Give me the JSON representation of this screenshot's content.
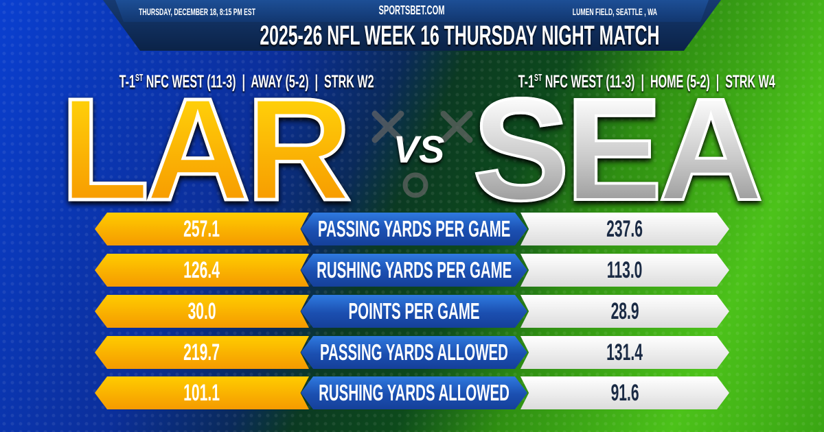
{
  "header": {
    "date": "THURSDAY, DECEMBER 18, 8:15 PM EST",
    "site": "SPORTSBET.COM",
    "venue": "LUMEN FIELD, SEATTLE , WA",
    "title": "2025-26 NFL WEEK 16 THURSDAY NIGHT MATCH"
  },
  "away": {
    "abbr": "LAR",
    "rank_prefix": "T-1",
    "rank_sup": "ST",
    "record": " NFC WEST (11-3)  |  AWAY (5-2)  |  STRK W2",
    "color": "#f6a800"
  },
  "home": {
    "abbr": "SEA",
    "rank_prefix": "T-1",
    "rank_sup": "ST",
    "record": " NFC WEST (11-3)  |  HOME (5-2)  |  STRK W4",
    "color": "#e0e0e0"
  },
  "vs": "VS",
  "stats": [
    {
      "label": "PASSING YARDS PER GAME",
      "away": "257.1",
      "home": "237.6"
    },
    {
      "label": "RUSHING YARDS PER GAME",
      "away": "126.4",
      "home": "113.0"
    },
    {
      "label": "POINTS PER GAME",
      "away": "30.0",
      "home": "28.9"
    },
    {
      "label": "PASSING YARDS ALLOWED",
      "away": "219.7",
      "home": "131.4"
    },
    {
      "label": "RUSHING YARDS ALLOWED",
      "away": "101.1",
      "home": "91.6"
    }
  ]
}
